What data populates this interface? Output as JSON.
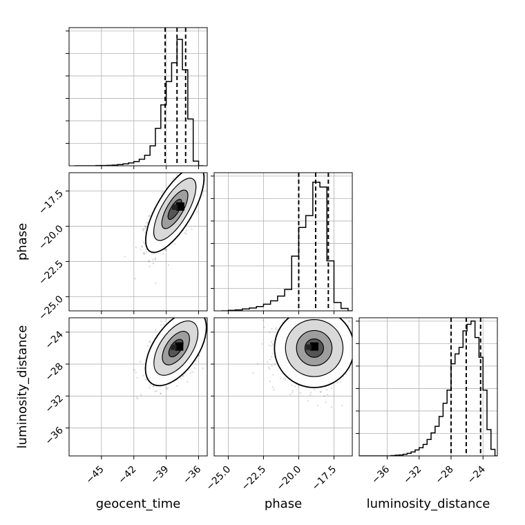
{
  "chart_data": {
    "type": "corner",
    "grid": true,
    "parameters": [
      {
        "key": "geocent_time",
        "label": "geocent_time",
        "range": [
          -48,
          -35.2
        ],
        "ticks": [
          -45,
          -42,
          -39,
          -36
        ],
        "tick_labels": [
          "−45",
          "−42",
          "−39",
          "−36"
        ]
      },
      {
        "key": "phase",
        "label": "phase",
        "range": [
          -26,
          -16.2
        ],
        "ticks": [
          -25.0,
          -22.5,
          -20.0,
          -17.5
        ],
        "tick_labels": [
          "−25.0",
          "−22.5",
          "−20.0",
          "−17.5"
        ]
      },
      {
        "key": "luminosity_distance",
        "label": "luminosity_distance",
        "range": [
          -39.5,
          -22.2
        ],
        "ticks": [
          -36,
          -32,
          -28,
          -24
        ],
        "tick_labels": [
          "−36",
          "−32",
          "−28",
          "−24"
        ]
      }
    ],
    "histograms": [
      {
        "param": "geocent_time",
        "bin_edges": [
          -47.5,
          -47,
          -46.5,
          -46,
          -45.5,
          -45,
          -44.5,
          -44,
          -43.5,
          -43,
          -42.5,
          -42,
          -41.5,
          -41,
          -40.5,
          -40,
          -39.5,
          -39,
          -38.5,
          -38,
          -37.5,
          -37,
          -36.5,
          -36,
          -35.5
        ],
        "counts": [
          0,
          0,
          0,
          0,
          1,
          1,
          2,
          3,
          5,
          8,
          12,
          18,
          28,
          45,
          85,
          160,
          260,
          360,
          440,
          540,
          410,
          200,
          20,
          0
        ],
        "ymax": 590,
        "quantiles": [
          -39.1,
          -38.0,
          -37.2
        ]
      },
      {
        "param": "phase",
        "bin_edges": [
          -25.5,
          -25,
          -24.5,
          -24,
          -23.5,
          -23,
          -22.5,
          -22,
          -21.5,
          -21,
          -20.5,
          -20,
          -19.5,
          -19,
          -18.5,
          -18,
          -17.5,
          -17,
          -16.5,
          -16
        ],
        "counts": [
          0,
          2,
          4,
          8,
          12,
          18,
          28,
          42,
          62,
          90,
          230,
          350,
          400,
          540,
          520,
          210,
          35,
          10,
          0
        ],
        "ymax": 580,
        "quantiles": [
          -20.0,
          -18.8,
          -17.9
        ]
      },
      {
        "param": "luminosity_distance",
        "bin_edges": [
          -39.5,
          -39,
          -38.5,
          -38,
          -37.5,
          -37,
          -36.5,
          -36,
          -35.5,
          -35,
          -34.5,
          -34,
          -33.5,
          -33,
          -32.5,
          -32,
          -31.5,
          -31,
          -30.5,
          -30,
          -29.5,
          -29,
          -28.5,
          -28,
          -27.5,
          -27,
          -26.5,
          -26,
          -25.5,
          -25,
          -24.5,
          -24,
          -23.5,
          -23,
          -22.5,
          -22
        ],
        "counts": [
          0,
          0,
          0,
          0,
          0,
          0,
          0,
          0,
          1,
          2,
          3,
          5,
          8,
          12,
          18,
          25,
          35,
          50,
          70,
          90,
          120,
          160,
          200,
          280,
          310,
          330,
          380,
          400,
          410,
          360,
          300,
          200,
          80,
          20,
          0
        ],
        "ymax": 420,
        "quantiles": [
          -28.0,
          -26.1,
          -24.3
        ]
      }
    ],
    "pairs": [
      {
        "x": "geocent_time",
        "y": "phase",
        "mean": [
          -38.2,
          -18.8
        ],
        "sigma": [
          1.15,
          1.3
        ],
        "corr": 0.72,
        "n_points": 1400,
        "box_center": [
          -37.7,
          -18.6
        ]
      },
      {
        "x": "geocent_time",
        "y": "luminosity_distance",
        "mean": [
          -38.1,
          -26.0
        ],
        "sigma": [
          1.2,
          2.0
        ],
        "corr": 0.55,
        "n_points": 1400,
        "box_center": [
          -37.8,
          -25.8
        ]
      },
      {
        "x": "phase",
        "y": "luminosity_distance",
        "mean": [
          -18.9,
          -26.0
        ],
        "sigma": [
          1.2,
          2.1
        ],
        "corr": 0.0,
        "n_points": 1400,
        "box_center": [
          -18.9,
          -25.8
        ]
      }
    ]
  }
}
